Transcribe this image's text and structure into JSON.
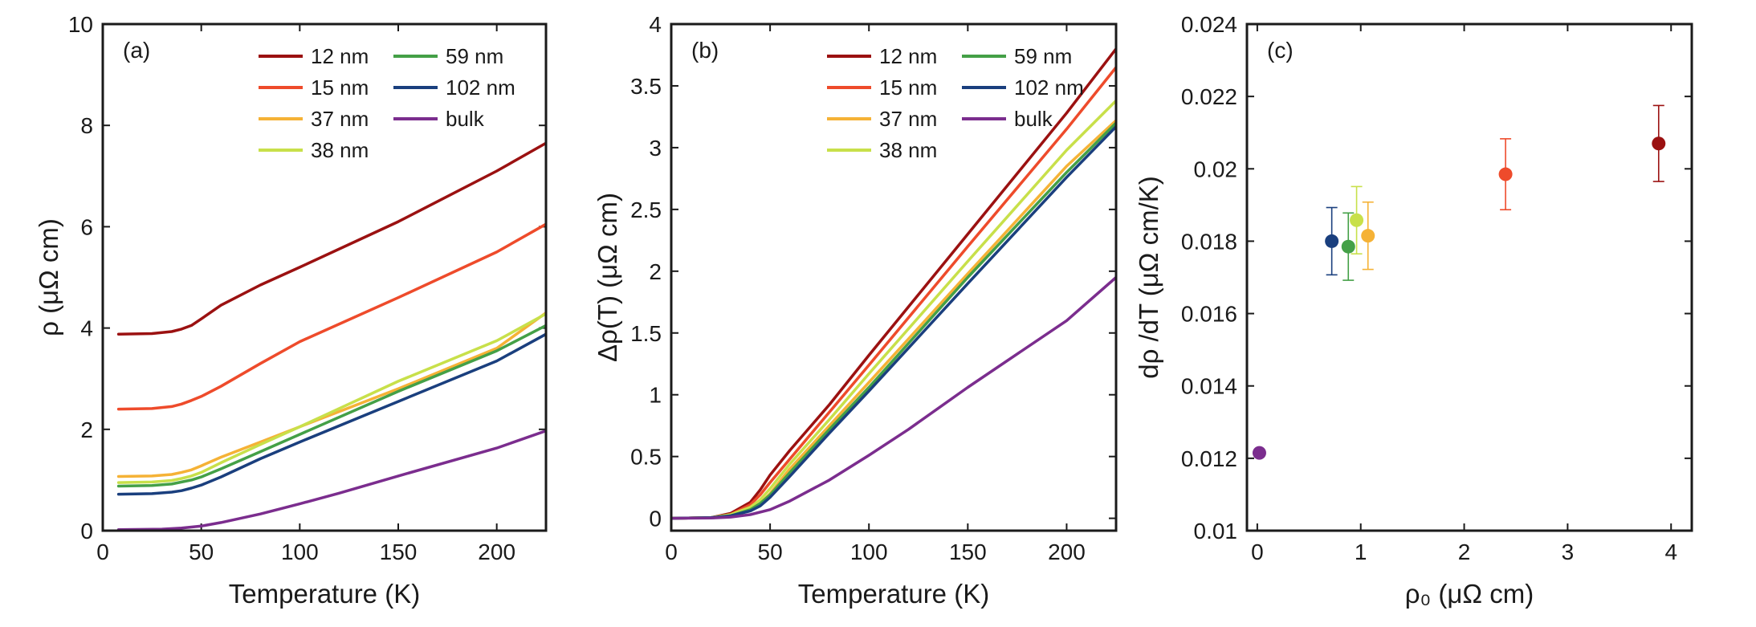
{
  "chart_data": [
    {
      "type": "line",
      "panel": "(a)",
      "title": "",
      "xlabel": "Temperature (K)",
      "ylabel": "ρ (μΩ cm)",
      "xlim": [
        0,
        225
      ],
      "ylim": [
        0,
        10
      ],
      "xticks": [
        "0",
        "50",
        "100",
        "150",
        "200"
      ],
      "yticks": [
        "0",
        "2",
        "4",
        "6",
        "8",
        "10"
      ],
      "legend_position": "top-right",
      "series": [
        {
          "name": "12 nm",
          "color": "#9b1111",
          "x": [
            8,
            25,
            35,
            40,
            45,
            50,
            60,
            80,
            100,
            150,
            200,
            225
          ],
          "y": [
            3.88,
            3.89,
            3.93,
            3.98,
            4.05,
            4.18,
            4.45,
            4.85,
            5.2,
            6.1,
            7.1,
            7.65
          ]
        },
        {
          "name": "15 nm",
          "color": "#ee4b2b",
          "x": [
            8,
            25,
            35,
            40,
            45,
            50,
            60,
            80,
            100,
            150,
            200,
            225
          ],
          "y": [
            2.4,
            2.41,
            2.45,
            2.5,
            2.57,
            2.65,
            2.85,
            3.3,
            3.73,
            4.6,
            5.5,
            6.05
          ]
        },
        {
          "name": "37 nm",
          "color": "#f5b236",
          "x": [
            8,
            25,
            35,
            40,
            45,
            50,
            60,
            80,
            100,
            150,
            200,
            225
          ],
          "y": [
            1.07,
            1.08,
            1.11,
            1.15,
            1.2,
            1.28,
            1.45,
            1.75,
            2.05,
            2.8,
            3.6,
            4.3
          ]
        },
        {
          "name": "38 nm",
          "color": "#c8e04a",
          "x": [
            8,
            25,
            35,
            40,
            45,
            50,
            60,
            80,
            100,
            150,
            200,
            225
          ],
          "y": [
            0.95,
            0.96,
            0.99,
            1.03,
            1.08,
            1.15,
            1.34,
            1.7,
            2.05,
            2.95,
            3.75,
            4.28
          ]
        },
        {
          "name": "59 nm",
          "color": "#44a047",
          "x": [
            8,
            25,
            35,
            40,
            45,
            50,
            60,
            80,
            100,
            150,
            200,
            225
          ],
          "y": [
            0.88,
            0.89,
            0.92,
            0.96,
            1.0,
            1.06,
            1.22,
            1.56,
            1.9,
            2.75,
            3.55,
            4.05
          ]
        },
        {
          "name": "102 nm",
          "color": "#1a3f7e",
          "x": [
            8,
            25,
            35,
            40,
            45,
            50,
            60,
            80,
            100,
            150,
            200,
            225
          ],
          "y": [
            0.72,
            0.73,
            0.76,
            0.79,
            0.84,
            0.9,
            1.06,
            1.42,
            1.75,
            2.55,
            3.35,
            3.88
          ]
        },
        {
          "name": "bulk",
          "color": "#7b2d8e",
          "x": [
            8,
            30,
            40,
            50,
            60,
            80,
            100,
            120,
            150,
            200,
            225
          ],
          "y": [
            0.02,
            0.03,
            0.05,
            0.09,
            0.16,
            0.33,
            0.53,
            0.74,
            1.08,
            1.63,
            1.97
          ]
        }
      ]
    },
    {
      "type": "line",
      "panel": "(b)",
      "title": "",
      "xlabel": "Temperature (K)",
      "ylabel": "Δρ(T) (μΩ cm)",
      "xlim": [
        0,
        225
      ],
      "ylim": [
        -0.1,
        4
      ],
      "xticks": [
        "0",
        "50",
        "100",
        "150",
        "200"
      ],
      "yticks": [
        "0",
        "0.5",
        "1",
        "1.5",
        "2",
        "2.5",
        "3",
        "3.5",
        "4"
      ],
      "legend_position": "top-right",
      "series": [
        {
          "name": "12 nm",
          "color": "#9b1111",
          "x": [
            0,
            20,
            30,
            40,
            45,
            50,
            60,
            80,
            100,
            150,
            200,
            225
          ],
          "y": [
            0,
            0.005,
            0.04,
            0.13,
            0.23,
            0.35,
            0.55,
            0.92,
            1.32,
            2.3,
            3.28,
            3.8
          ]
        },
        {
          "name": "15 nm",
          "color": "#ee4b2b",
          "x": [
            0,
            20,
            30,
            40,
            45,
            50,
            60,
            80,
            100,
            150,
            200,
            225
          ],
          "y": [
            0,
            0.005,
            0.03,
            0.11,
            0.19,
            0.29,
            0.48,
            0.86,
            1.24,
            2.2,
            3.15,
            3.65
          ]
        },
        {
          "name": "37 nm",
          "color": "#f5b236",
          "x": [
            0,
            20,
            30,
            40,
            45,
            50,
            60,
            80,
            100,
            150,
            200,
            225
          ],
          "y": [
            0,
            0.005,
            0.02,
            0.07,
            0.12,
            0.2,
            0.4,
            0.75,
            1.1,
            1.98,
            2.85,
            3.22
          ]
        },
        {
          "name": "38 nm",
          "color": "#c8e04a",
          "x": [
            0,
            20,
            30,
            40,
            45,
            50,
            60,
            80,
            100,
            150,
            200,
            225
          ],
          "y": [
            0,
            0.005,
            0.03,
            0.09,
            0.15,
            0.24,
            0.44,
            0.8,
            1.17,
            2.08,
            2.98,
            3.38
          ]
        },
        {
          "name": "59 nm",
          "color": "#44a047",
          "x": [
            0,
            20,
            30,
            40,
            45,
            50,
            60,
            80,
            100,
            150,
            200,
            225
          ],
          "y": [
            0,
            0.005,
            0.02,
            0.07,
            0.12,
            0.19,
            0.37,
            0.72,
            1.06,
            1.95,
            2.8,
            3.2
          ]
        },
        {
          "name": "102 nm",
          "color": "#1a3f7e",
          "x": [
            0,
            20,
            30,
            40,
            45,
            50,
            60,
            80,
            100,
            150,
            200,
            225
          ],
          "y": [
            0,
            0.005,
            0.02,
            0.06,
            0.1,
            0.17,
            0.34,
            0.69,
            1.03,
            1.9,
            2.76,
            3.17
          ]
        },
        {
          "name": "bulk",
          "color": "#7b2d8e",
          "x": [
            0,
            20,
            30,
            40,
            50,
            60,
            80,
            100,
            120,
            150,
            200,
            225
          ],
          "y": [
            0,
            0.002,
            0.01,
            0.03,
            0.07,
            0.14,
            0.31,
            0.51,
            0.72,
            1.06,
            1.6,
            1.95
          ]
        }
      ]
    },
    {
      "type": "scatter",
      "panel": "(c)",
      "title": "",
      "xlabel": "ρ₀ (μΩ cm)",
      "ylabel": "dρ /dT (μΩ cm/K)",
      "xlim": [
        -0.1,
        4.2
      ],
      "ylim": [
        0.01,
        0.024
      ],
      "xticks": [
        "0",
        "1",
        "2",
        "3",
        "4"
      ],
      "yticks": [
        "0.01",
        "0.012",
        "0.014",
        "0.016",
        "0.018",
        "0.02",
        "0.022",
        "0.024"
      ],
      "points": [
        {
          "name": "bulk",
          "color": "#7b2d8e",
          "x": 0.02,
          "y": 0.01215,
          "err": 0.0
        },
        {
          "name": "102 nm",
          "color": "#1a3f7e",
          "x": 0.72,
          "y": 0.018,
          "err": 0.00093
        },
        {
          "name": "59 nm",
          "color": "#44a047",
          "x": 0.88,
          "y": 0.01785,
          "err": 0.00093
        },
        {
          "name": "38 nm",
          "color": "#c8e04a",
          "x": 0.96,
          "y": 0.01858,
          "err": 0.00093
        },
        {
          "name": "37 nm",
          "color": "#f5b236",
          "x": 1.07,
          "y": 0.01815,
          "err": 0.00093
        },
        {
          "name": "15 nm",
          "color": "#ee4b2b",
          "x": 2.4,
          "y": 0.01985,
          "err": 0.00098
        },
        {
          "name": "12 nm",
          "color": "#9b1111",
          "x": 3.88,
          "y": 0.0207,
          "err": 0.00105
        }
      ]
    }
  ]
}
